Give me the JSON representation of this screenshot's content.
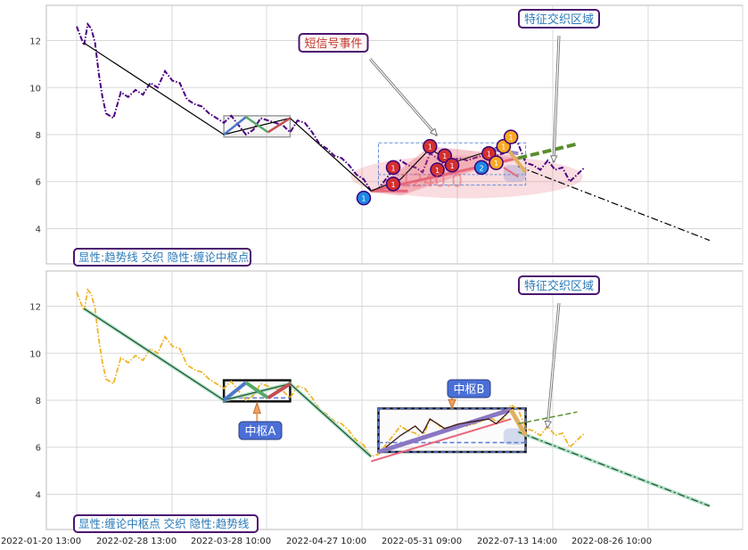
{
  "chart_data": [
    {
      "type": "line",
      "panel": "top",
      "ylim": [
        2.5,
        13.5
      ],
      "yticks": [
        4,
        6,
        8,
        10,
        12
      ],
      "grid": true,
      "legend_text": "显性:趋势线 交织 隐性:缠论中枢点",
      "annotations": [
        "短信号事件",
        "特征交织区域"
      ],
      "overlay_value_text": "1240.0",
      "series": [
        {
          "type": "price",
          "color": "#4b0082",
          "points": [
            [
              0,
              12.6
            ],
            [
              0.5,
              12.2
            ],
            [
              1,
              11.8
            ],
            [
              1.5,
              12.7
            ],
            [
              2,
              12.5
            ],
            [
              2.5,
              11.9
            ],
            [
              3,
              10.6
            ],
            [
              3.5,
              9.6
            ],
            [
              4,
              8.9
            ],
            [
              5,
              8.7
            ],
            [
              6,
              9.8
            ],
            [
              7,
              9.6
            ],
            [
              8,
              9.9
            ],
            [
              9,
              9.7
            ],
            [
              10,
              10.2
            ],
            [
              11,
              10.0
            ],
            [
              12,
              10.7
            ],
            [
              13,
              10.3
            ],
            [
              14,
              10.2
            ],
            [
              15,
              9.5
            ],
            [
              16,
              9.3
            ],
            [
              17,
              9.2
            ],
            [
              18,
              8.9
            ],
            [
              19,
              8.7
            ],
            [
              20,
              8.5
            ],
            [
              21,
              8.8
            ],
            [
              22,
              8.4
            ],
            [
              23,
              8.0
            ],
            [
              24,
              8.2
            ],
            [
              25,
              8.7
            ],
            [
              26,
              8.6
            ],
            [
              27,
              8.5
            ],
            [
              28,
              8.4
            ],
            [
              29,
              8.1
            ],
            [
              30,
              8.6
            ],
            [
              31,
              8.5
            ],
            [
              32,
              8.1
            ],
            [
              33,
              7.6
            ],
            [
              34,
              7.4
            ],
            [
              35,
              7.1
            ],
            [
              36,
              7.0
            ],
            [
              37,
              6.7
            ],
            [
              38,
              6.3
            ],
            [
              39,
              6.1
            ],
            [
              40,
              5.6
            ],
            [
              41,
              5.7
            ],
            [
              42,
              6.1
            ],
            [
              43,
              6.5
            ],
            [
              44,
              6.9
            ],
            [
              45,
              6.7
            ],
            [
              46,
              6.6
            ],
            [
              47,
              6.4
            ],
            [
              48,
              7.2
            ],
            [
              49,
              7.0
            ],
            [
              50,
              6.7
            ],
            [
              51,
              6.9
            ],
            [
              52,
              7.0
            ],
            [
              53,
              6.9
            ],
            [
              54,
              7.0
            ],
            [
              55,
              7.1
            ],
            [
              56,
              7.3
            ],
            [
              57,
              7.1
            ],
            [
              58,
              7.2
            ],
            [
              59,
              7.8
            ],
            [
              60,
              7.6
            ],
            [
              61,
              6.8
            ],
            [
              62,
              6.7
            ],
            [
              63,
              6.5
            ],
            [
              64,
              6.9
            ],
            [
              65,
              6.5
            ],
            [
              66,
              6.6
            ],
            [
              67,
              6.0
            ],
            [
              68,
              6.3
            ],
            [
              69,
              6.6
            ]
          ]
        },
        {
          "type": "trendline",
          "color": "#000000",
          "points": [
            [
              1,
              11.9
            ],
            [
              20,
              8.0
            ],
            [
              29,
              8.7
            ],
            [
              40,
              5.6
            ]
          ]
        },
        {
          "type": "trendline-long",
          "color": "#000000",
          "points": [
            [
              40,
              5.6
            ],
            [
              60,
              7.2
            ],
            [
              86,
              3.5
            ]
          ]
        }
      ],
      "zhongshu_box": {
        "x": [
          20,
          29
        ],
        "y": [
          7.9,
          8.8
        ]
      },
      "zhongshu_box2": {
        "x": [
          41,
          61
        ],
        "y": [
          5.85,
          7.65
        ]
      },
      "events": [
        {
          "x": 39,
          "y": 5.3,
          "color": "#1e88e5",
          "label": "1"
        },
        {
          "x": 43,
          "y": 6.6,
          "color": "#d32f2f",
          "label": "1"
        },
        {
          "x": 43,
          "y": 5.9,
          "color": "#d32f2f",
          "label": "1"
        },
        {
          "x": 48,
          "y": 7.5,
          "color": "#d32f2f",
          "label": "1"
        },
        {
          "x": 49,
          "y": 6.5,
          "color": "#d32f2f",
          "label": "1"
        },
        {
          "x": 50,
          "y": 7.1,
          "color": "#d32f2f",
          "label": "1"
        },
        {
          "x": 51,
          "y": 6.7,
          "color": "#d32f2f",
          "label": "1"
        },
        {
          "x": 55,
          "y": 6.6,
          "color": "#1e88e5",
          "label": "2"
        },
        {
          "x": 56,
          "y": 7.2,
          "color": "#d32f2f",
          "label": "1"
        },
        {
          "x": 57,
          "y": 6.8,
          "color": "#f9a825",
          "label": "1"
        },
        {
          "x": 58,
          "y": 7.5,
          "color": "#f9a825",
          "label": "1"
        },
        {
          "x": 59,
          "y": 7.9,
          "color": "#f9a825",
          "label": "1"
        }
      ]
    },
    {
      "type": "line",
      "panel": "bottom",
      "ylim": [
        2.5,
        13.5
      ],
      "yticks": [
        4,
        6,
        8,
        10,
        12
      ],
      "grid": true,
      "legend_text": "显性:缠论中枢点 交织 隐性:趋势线",
      "annotations": [
        "特征交织区域",
        "中枢A",
        "中枢B"
      ],
      "xticks": [
        "2022-01-20 13:00",
        "2022-02-28 13:00",
        "2022-03-28 10:00",
        "2022-04-27 10:00",
        "2022-05-31 09:00",
        "2022-07-13 14:00",
        "2022-08-26 10:00"
      ],
      "series": [
        {
          "type": "price",
          "color": "#f0b429",
          "points": [
            [
              0,
              12.6
            ],
            [
              0.5,
              12.2
            ],
            [
              1,
              11.8
            ],
            [
              1.5,
              12.7
            ],
            [
              2,
              12.5
            ],
            [
              2.5,
              11.9
            ],
            [
              3,
              10.6
            ],
            [
              3.5,
              9.6
            ],
            [
              4,
              8.9
            ],
            [
              5,
              8.7
            ],
            [
              6,
              9.8
            ],
            [
              7,
              9.6
            ],
            [
              8,
              9.9
            ],
            [
              9,
              9.7
            ],
            [
              10,
              10.2
            ],
            [
              11,
              10.0
            ],
            [
              12,
              10.7
            ],
            [
              13,
              10.3
            ],
            [
              14,
              10.2
            ],
            [
              15,
              9.5
            ],
            [
              16,
              9.3
            ],
            [
              17,
              9.2
            ],
            [
              18,
              8.9
            ],
            [
              19,
              8.7
            ],
            [
              20,
              8.5
            ],
            [
              21,
              8.8
            ],
            [
              22,
              8.4
            ],
            [
              23,
              8.0
            ],
            [
              24,
              8.2
            ],
            [
              25,
              8.7
            ],
            [
              26,
              8.6
            ],
            [
              27,
              8.5
            ],
            [
              28,
              8.4
            ],
            [
              29,
              8.1
            ],
            [
              30,
              8.6
            ],
            [
              31,
              8.5
            ],
            [
              32,
              8.1
            ],
            [
              33,
              7.6
            ],
            [
              34,
              7.4
            ],
            [
              35,
              7.1
            ],
            [
              36,
              7.0
            ],
            [
              37,
              6.7
            ],
            [
              38,
              6.3
            ],
            [
              39,
              6.1
            ],
            [
              40,
              5.6
            ],
            [
              41,
              5.7
            ],
            [
              42,
              6.1
            ],
            [
              43,
              6.5
            ],
            [
              44,
              6.9
            ],
            [
              45,
              6.7
            ],
            [
              46,
              6.6
            ],
            [
              47,
              6.4
            ],
            [
              48,
              7.2
            ],
            [
              49,
              7.0
            ],
            [
              50,
              6.7
            ],
            [
              51,
              6.9
            ],
            [
              52,
              7.0
            ],
            [
              53,
              6.9
            ],
            [
              54,
              7.0
            ],
            [
              55,
              7.1
            ],
            [
              56,
              7.3
            ],
            [
              57,
              7.1
            ],
            [
              58,
              7.2
            ],
            [
              59,
              7.8
            ],
            [
              60,
              7.6
            ],
            [
              61,
              6.8
            ],
            [
              62,
              6.7
            ],
            [
              63,
              6.5
            ],
            [
              64,
              6.9
            ],
            [
              65,
              6.5
            ],
            [
              66,
              6.6
            ],
            [
              67,
              6.0
            ],
            [
              68,
              6.3
            ],
            [
              69,
              6.6
            ]
          ]
        },
        {
          "type": "trendline",
          "color": "#1a4d2e",
          "points": [
            [
              1,
              11.9
            ],
            [
              20,
              8.0
            ],
            [
              29,
              8.7
            ],
            [
              40,
              5.6
            ]
          ]
        },
        {
          "type": "trendline-long",
          "color": "#1a4d2e",
          "points": [
            [
              40,
              5.6
            ],
            [
              60,
              7.2
            ],
            [
              86,
              3.5
            ]
          ]
        }
      ],
      "zhongshu_box": {
        "x": [
          20,
          29
        ],
        "y": [
          7.95,
          8.85
        ]
      },
      "zhongshu_box2": {
        "x": [
          41,
          61
        ],
        "y": [
          5.8,
          7.65
        ]
      }
    }
  ],
  "ui": {
    "top_event_label": "短信号事件",
    "top_region_label": "特征交织区域",
    "top_legend": "显性:趋势线 交织 隐性:缠论中枢点",
    "bottom_region_label": "特征交织区域",
    "bottom_legend": "显性:缠论中枢点 交织 隐性:趋势线",
    "center_a": "中枢A",
    "center_b": "中枢B",
    "value_text": "1240.0"
  }
}
